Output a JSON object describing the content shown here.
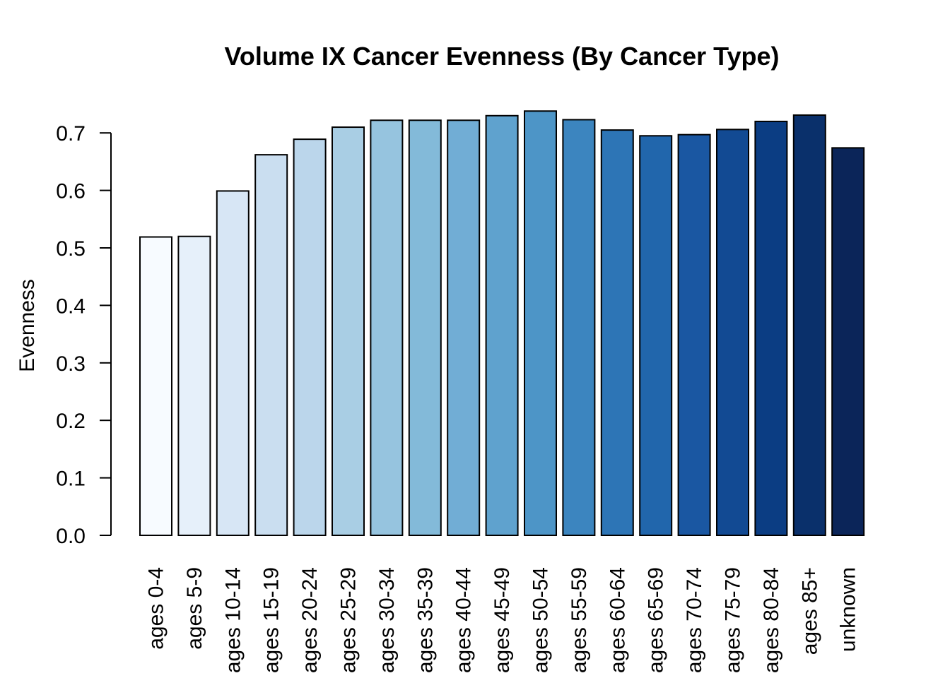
{
  "chart_data": {
    "type": "bar",
    "title": "Volume IX Cancer Evenness (By Cancer Type)",
    "xlabel": "",
    "ylabel": "Evenness",
    "ylim": [
      0,
      0.7
    ],
    "yticks": [
      "0.0",
      "0.1",
      "0.2",
      "0.3",
      "0.4",
      "0.5",
      "0.6",
      "0.7"
    ],
    "grid": false,
    "categories": [
      "ages 0-4",
      "ages 5-9",
      "ages 10-14",
      "ages 15-19",
      "ages 20-24",
      "ages 25-29",
      "ages 30-34",
      "ages 35-39",
      "ages 40-44",
      "ages 45-49",
      "ages 50-54",
      "ages 55-59",
      "ages 60-64",
      "ages 65-69",
      "ages 70-74",
      "ages 75-79",
      "ages 80-84",
      "ages 85+",
      "unknown"
    ],
    "values": [
      0.519,
      0.52,
      0.599,
      0.662,
      0.689,
      0.71,
      0.722,
      0.722,
      0.722,
      0.73,
      0.738,
      0.723,
      0.705,
      0.695,
      0.697,
      0.706,
      0.72,
      0.731,
      0.674
    ],
    "colors": [
      "#F7FBFF",
      "#E6F0FA",
      "#D7E6F5",
      "#CADEF0",
      "#BBD6EB",
      "#A9CEE4",
      "#96C4DF",
      "#83BAD9",
      "#71ADD5",
      "#5FA2CE",
      "#4D95C7",
      "#3C85BF",
      "#2D75B6",
      "#2166AC",
      "#1A57A2",
      "#124A93",
      "#0B3D83",
      "#0A306B",
      "#0B2559"
    ]
  }
}
